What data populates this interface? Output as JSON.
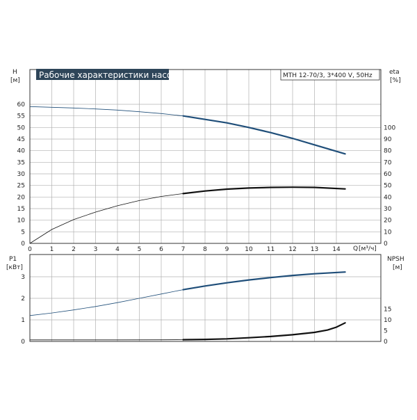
{
  "header": {
    "title": "Рабочие характеристики насоса",
    "model": "MTH 12-70/3, 3*400 V, 50Hz"
  },
  "colors": {
    "title_bg": "#2e4559",
    "grid": "#b0b0b0",
    "frame": "#333333",
    "curve_blue": "#1f4e79",
    "curve_black": "#111111"
  },
  "chart_data": [
    {
      "type": "line",
      "panel": "top",
      "x_axis": {
        "label": "Q",
        "unit": "[м³/ч]",
        "lim": [
          0,
          15
        ],
        "ticks": [
          "0",
          "1",
          "2",
          "3",
          "4",
          "5",
          "6",
          "7",
          "8",
          "9",
          "10",
          "11",
          "12",
          "13",
          "14"
        ]
      },
      "y_left": {
        "label": "H",
        "unit": "[м]",
        "lim": [
          0,
          64
        ],
        "ticks": [
          "0",
          "5",
          "10",
          "15",
          "20",
          "25",
          "30",
          "35",
          "40",
          "45",
          "50",
          "55",
          "60"
        ]
      },
      "y_right": {
        "label": "eta",
        "unit": "[%]",
        "lim": [
          0,
          128
        ],
        "ticks": [
          "0",
          "10",
          "20",
          "30",
          "40",
          "50",
          "60",
          "70",
          "80",
          "90",
          "100"
        ]
      },
      "grid": true,
      "series": [
        {
          "axis": "left",
          "color": "#1f4e79",
          "points": [
            [
              0,
              59
            ],
            [
              1,
              58.7
            ],
            [
              2,
              58.4
            ],
            [
              3,
              58
            ],
            [
              4,
              57.5
            ],
            [
              5,
              56.8
            ],
            [
              6,
              56
            ],
            [
              7,
              55
            ],
            [
              8,
              53.5
            ],
            [
              9,
              52
            ],
            [
              10,
              50
            ],
            [
              11,
              47.8
            ],
            [
              12,
              45.3
            ],
            [
              13,
              42.5
            ],
            [
              14.4,
              38.6
            ]
          ]
        },
        {
          "axis": "right",
          "color": "#111111",
          "points": [
            [
              0,
              0
            ],
            [
              1,
              12
            ],
            [
              2,
              20.5
            ],
            [
              3,
              27
            ],
            [
              4,
              32.5
            ],
            [
              5,
              37
            ],
            [
              6,
              40.5
            ],
            [
              7,
              43
            ],
            [
              8,
              45.2
            ],
            [
              9,
              46.8
            ],
            [
              10,
              47.8
            ],
            [
              11,
              48.3
            ],
            [
              12,
              48.5
            ],
            [
              13,
              48.3
            ],
            [
              14.4,
              47
            ]
          ]
        }
      ]
    },
    {
      "type": "line",
      "panel": "bottom",
      "x_axis": {
        "lim": [
          0,
          15
        ]
      },
      "y_left": {
        "label": "P1",
        "unit": "[кВт]",
        "lim": [
          0,
          4
        ],
        "ticks": [
          "0",
          "1",
          "2",
          "3"
        ]
      },
      "y_right": {
        "label": "NPSH",
        "unit": "[м]",
        "lim": [
          0,
          20
        ],
        "ticks": [
          "0",
          "5",
          "10",
          "15"
        ]
      },
      "grid": true,
      "series": [
        {
          "axis": "left",
          "color": "#1f4e79",
          "points": [
            [
              0,
              1.2
            ],
            [
              1,
              1.32
            ],
            [
              2,
              1.46
            ],
            [
              3,
              1.62
            ],
            [
              4,
              1.8
            ],
            [
              5,
              2.0
            ],
            [
              6,
              2.2
            ],
            [
              7,
              2.4
            ],
            [
              8,
              2.57
            ],
            [
              9,
              2.72
            ],
            [
              10,
              2.85
            ],
            [
              11,
              2.96
            ],
            [
              12,
              3.06
            ],
            [
              13,
              3.14
            ],
            [
              14.4,
              3.22
            ]
          ]
        },
        {
          "axis": "right",
          "color": "#111111",
          "points": [
            [
              0,
              0.7
            ],
            [
              2,
              0.7
            ],
            [
              4,
              0.72
            ],
            [
              6,
              0.75
            ],
            [
              7,
              0.8
            ],
            [
              8,
              0.95
            ],
            [
              9,
              1.2
            ],
            [
              10,
              1.7
            ],
            [
              11,
              2.3
            ],
            [
              12,
              3.1
            ],
            [
              13,
              4.2
            ],
            [
              13.6,
              5.3
            ],
            [
              14,
              6.6
            ],
            [
              14.4,
              8.6
            ]
          ]
        }
      ]
    }
  ]
}
